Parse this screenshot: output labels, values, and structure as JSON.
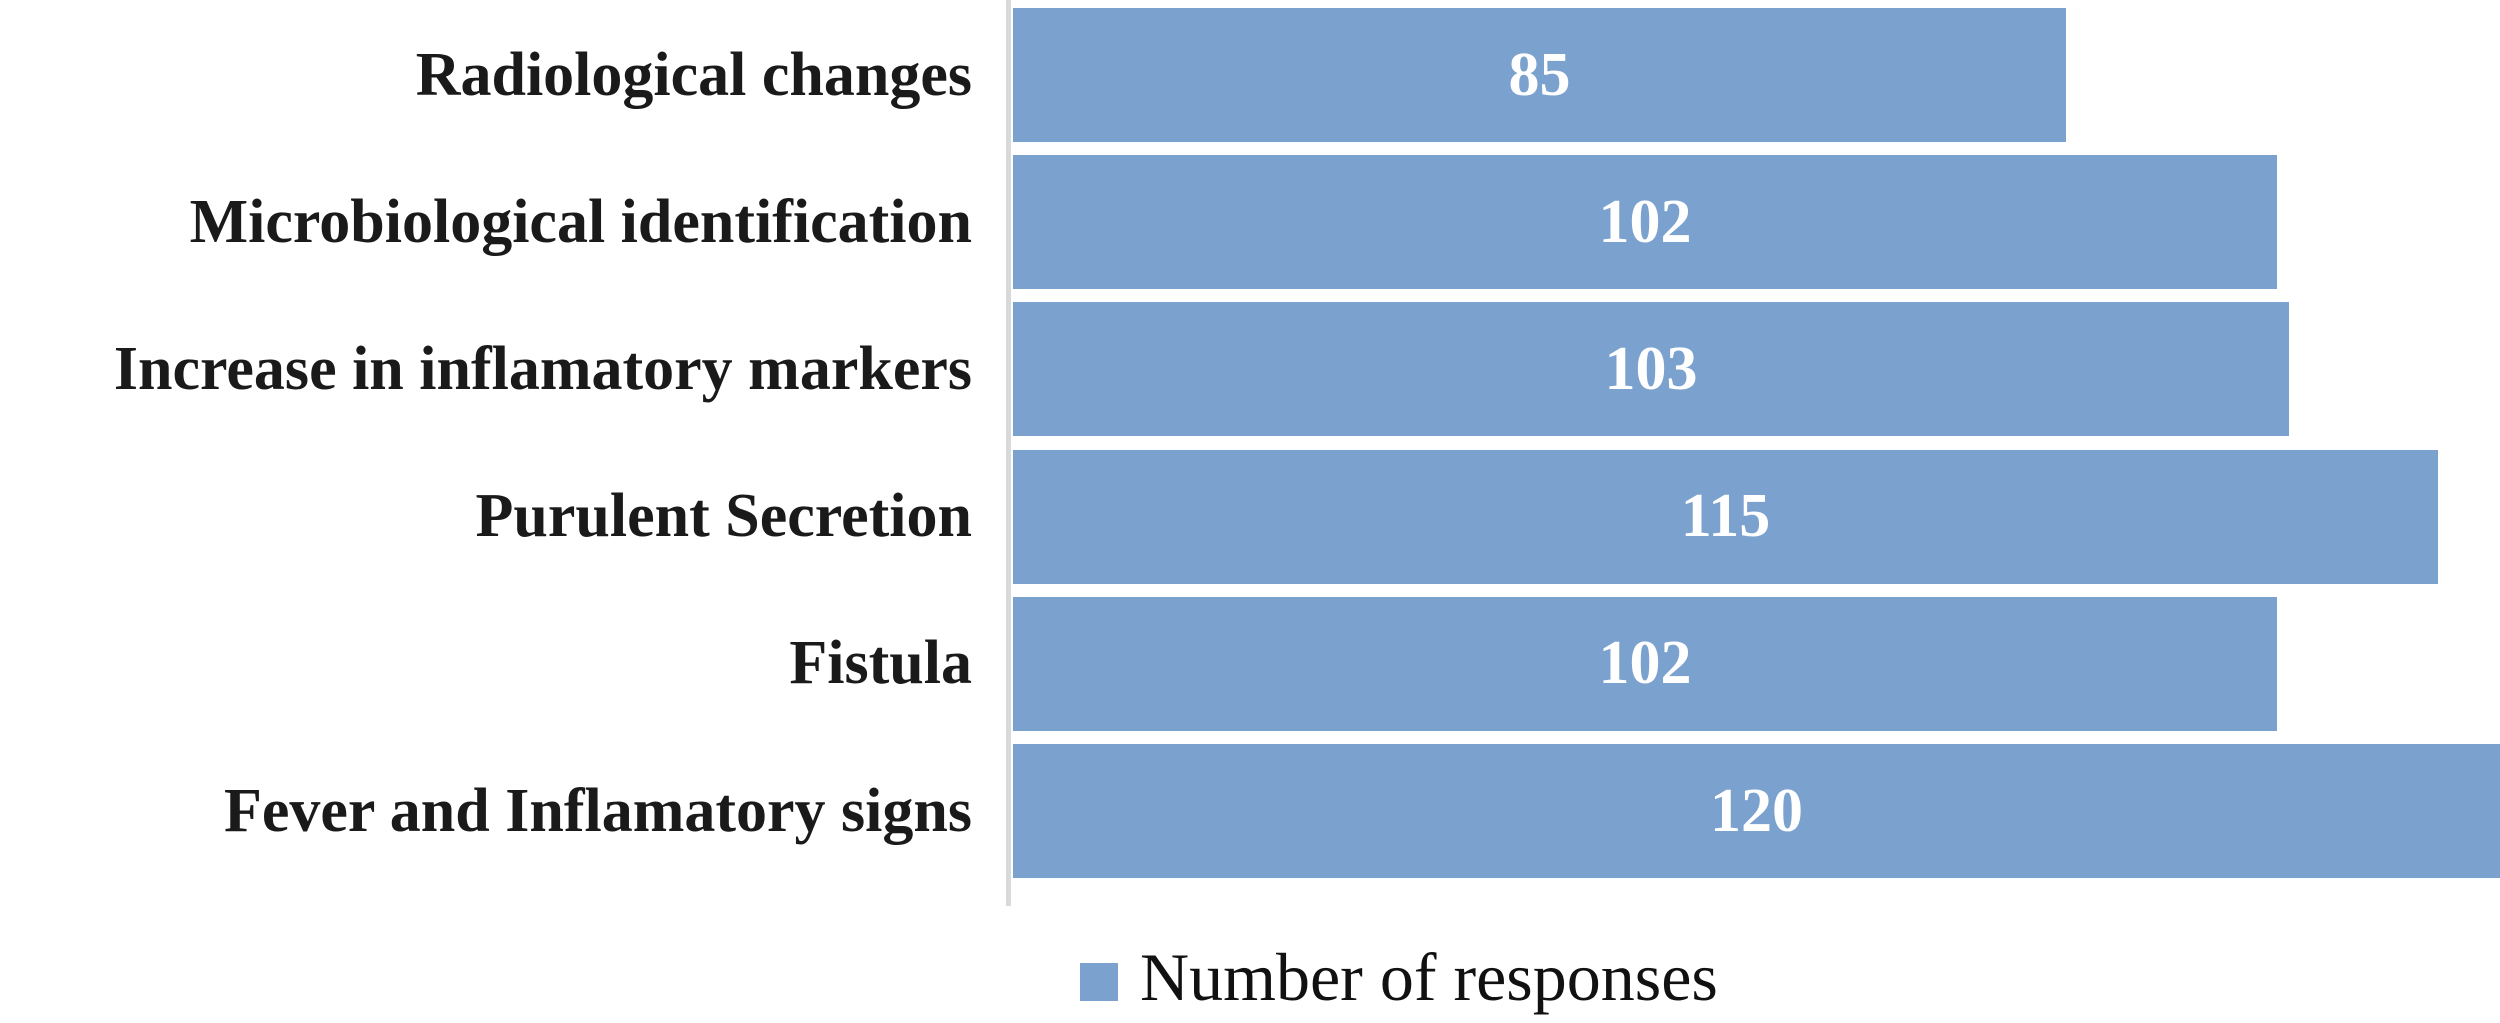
{
  "chart_data": {
    "type": "bar",
    "orientation": "horizontal",
    "title": "",
    "xlabel": "",
    "ylabel": "",
    "categories": [
      "Radiological changes",
      "Microbiological identification",
      "Increase in inflamatory markers",
      "Purulent Secretion",
      "Fistula",
      "Fever and Inflamatory signs"
    ],
    "values": [
      85,
      102,
      103,
      115,
      102,
      120
    ],
    "value_labels_shown": true,
    "xlim": [
      0,
      120
    ],
    "grid": false,
    "legend": {
      "label": "Number of responses",
      "position": "bottom"
    },
    "colors": {
      "bar": "#7ba1ce",
      "value_label": "#ffffff",
      "category_label": "#1a1a1a",
      "axis_line": "#d9d9d9",
      "background": "#ffffff"
    }
  }
}
